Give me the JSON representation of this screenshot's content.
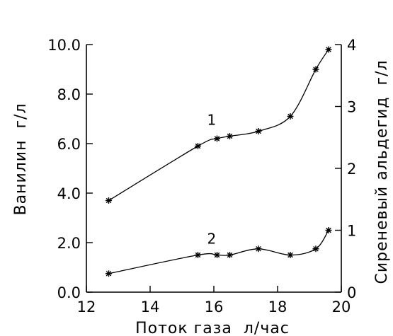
{
  "chart_data": {
    "type": "line",
    "xlabel": "Поток газа  л/час",
    "ylabel_left": "Ванилин  г/л",
    "ylabel_right": "Сиреневый альдегид  г/л",
    "xlim": [
      12,
      20
    ],
    "ylim_left": [
      0,
      10
    ],
    "ylim_right": [
      0,
      4
    ],
    "x_ticks": [
      "12",
      "14",
      "16",
      "18",
      "20"
    ],
    "y_left_ticks": [
      "0.0",
      "2.0",
      "4.0",
      "6.0",
      "8.0",
      "10.0"
    ],
    "y_right_ticks": [
      "0",
      "1",
      "2",
      "3",
      "4"
    ],
    "grid": false,
    "series": [
      {
        "label": "1",
        "axis": "left",
        "x": [
          12.7,
          15.5,
          16.1,
          16.5,
          17.4,
          18.4,
          19.2,
          19.6
        ],
        "y": [
          3.7,
          5.9,
          6.2,
          6.3,
          6.5,
          7.1,
          9.0,
          9.8
        ]
      },
      {
        "label": "2",
        "axis": "right",
        "x": [
          12.7,
          15.5,
          16.1,
          16.5,
          17.4,
          18.4,
          19.2,
          19.6
        ],
        "y": [
          0.3,
          0.6,
          0.6,
          0.6,
          0.7,
          0.6,
          0.7,
          1.0
        ]
      }
    ]
  }
}
